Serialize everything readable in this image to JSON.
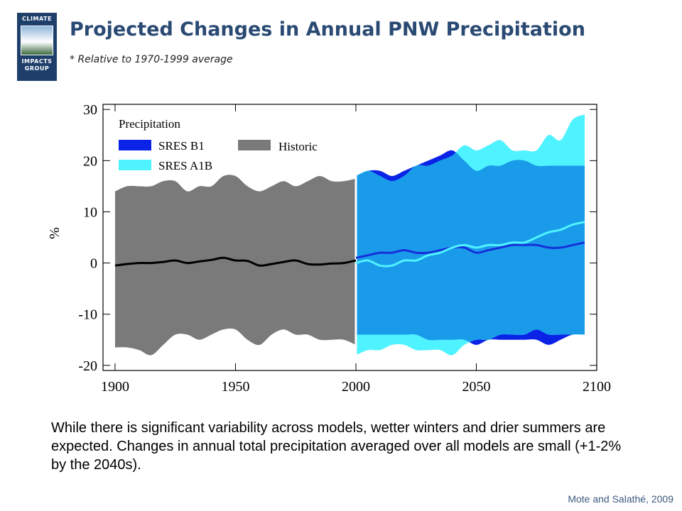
{
  "header": {
    "logo_lines": [
      "CLIMATE",
      "IMPACTS",
      "GROUP"
    ],
    "title": "Projected Changes in Annual PNW Precipitation",
    "subtitle": "* Relative to 1970-1999 average"
  },
  "body_text": "While there is significant variability across models, wetter winters and drier summers are expected. Changes in annual total precipitation averaged over all models are small (+1-2% by the 2040s).",
  "source": "Mote and Salathé, 2009",
  "chart_data": {
    "type": "area",
    "title": "",
    "xlabel": "",
    "ylabel": "%",
    "xlim": [
      1895,
      2100
    ],
    "ylim": [
      -21,
      31
    ],
    "xticks": [
      "1900",
      "1950",
      "2000",
      "2050",
      "2100"
    ],
    "yticks": [
      "30",
      "20",
      "10",
      "0",
      "-10",
      "-20"
    ],
    "legend": {
      "title": "Precipitation",
      "placement": "top-left",
      "entries": [
        "SRES B1",
        "SRES A1B",
        "Historic"
      ]
    },
    "colors": {
      "historic": "#7a7a7a",
      "b1": "#0a23e6",
      "a1b": "#4ff2ff",
      "overlap": "#1a9bea",
      "mean": "#000000",
      "b1_line": "#1530d8",
      "a1b_line": "#4ff2ff"
    },
    "historic": {
      "x": [
        1900,
        1905,
        1910,
        1915,
        1920,
        1925,
        1930,
        1935,
        1940,
        1945,
        1950,
        1955,
        1960,
        1965,
        1970,
        1975,
        1980,
        1985,
        1990,
        1995,
        2000
      ],
      "upper": [
        14,
        15,
        15,
        15,
        16,
        16,
        14,
        15,
        15,
        17,
        17,
        15,
        14,
        15,
        16,
        15,
        16,
        17,
        16,
        16,
        16.5
      ],
      "lower": [
        -16.5,
        -16.5,
        -17,
        -18,
        -16,
        -14,
        -14,
        -15,
        -14,
        -13,
        -13,
        -15,
        -16,
        -14,
        -13,
        -14,
        -14,
        -15,
        -15,
        -15,
        -16
      ],
      "mean": [
        -0.5,
        -0.2,
        0,
        0,
        0.2,
        0.5,
        0,
        0.3,
        0.6,
        1,
        0.5,
        0.4,
        -0.5,
        -0.2,
        0.2,
        0.5,
        -0.2,
        -0.3,
        -0.1,
        0,
        0.5
      ]
    },
    "series": [
      {
        "name": "SRES B1",
        "x": [
          2000,
          2005,
          2010,
          2015,
          2020,
          2025,
          2030,
          2035,
          2040,
          2045,
          2050,
          2055,
          2060,
          2065,
          2070,
          2075,
          2080,
          2085,
          2090,
          2095
        ],
        "upper": [
          17,
          18,
          18,
          17,
          18,
          19,
          20,
          21,
          22,
          20,
          18,
          19,
          19,
          20,
          20,
          19,
          19,
          19,
          19,
          19
        ],
        "lower": [
          -14,
          -14,
          -14,
          -14,
          -14,
          -14,
          -15,
          -15,
          -15,
          -15,
          -16,
          -15,
          -15,
          -15,
          -15,
          -15,
          -16,
          -15,
          -14,
          -14
        ],
        "mean": [
          1,
          1.5,
          2,
          2,
          2.5,
          2,
          2,
          2.5,
          3,
          3,
          2,
          2.5,
          3,
          3.5,
          3.5,
          3.5,
          3,
          3,
          3.5,
          4
        ]
      },
      {
        "name": "SRES A1B",
        "x": [
          2000,
          2005,
          2010,
          2015,
          2020,
          2025,
          2030,
          2035,
          2040,
          2045,
          2050,
          2055,
          2060,
          2065,
          2070,
          2075,
          2080,
          2085,
          2090,
          2095
        ],
        "upper": [
          17,
          18,
          17,
          16,
          17,
          19,
          19,
          20,
          21,
          23,
          22,
          23,
          24,
          22,
          22,
          22,
          25,
          24,
          28,
          29
        ],
        "lower": [
          -18,
          -17,
          -17,
          -16,
          -16,
          -17,
          -17,
          -17,
          -18,
          -16,
          -15,
          -15,
          -14,
          -14,
          -14,
          -13,
          -14,
          -14,
          -14,
          -14
        ],
        "mean": [
          0,
          0.5,
          -0.5,
          -0.5,
          0.5,
          0.5,
          1.5,
          2,
          3,
          3.5,
          3,
          3.5,
          3.5,
          4,
          4,
          5,
          6,
          6.5,
          7.5,
          8
        ]
      }
    ]
  }
}
